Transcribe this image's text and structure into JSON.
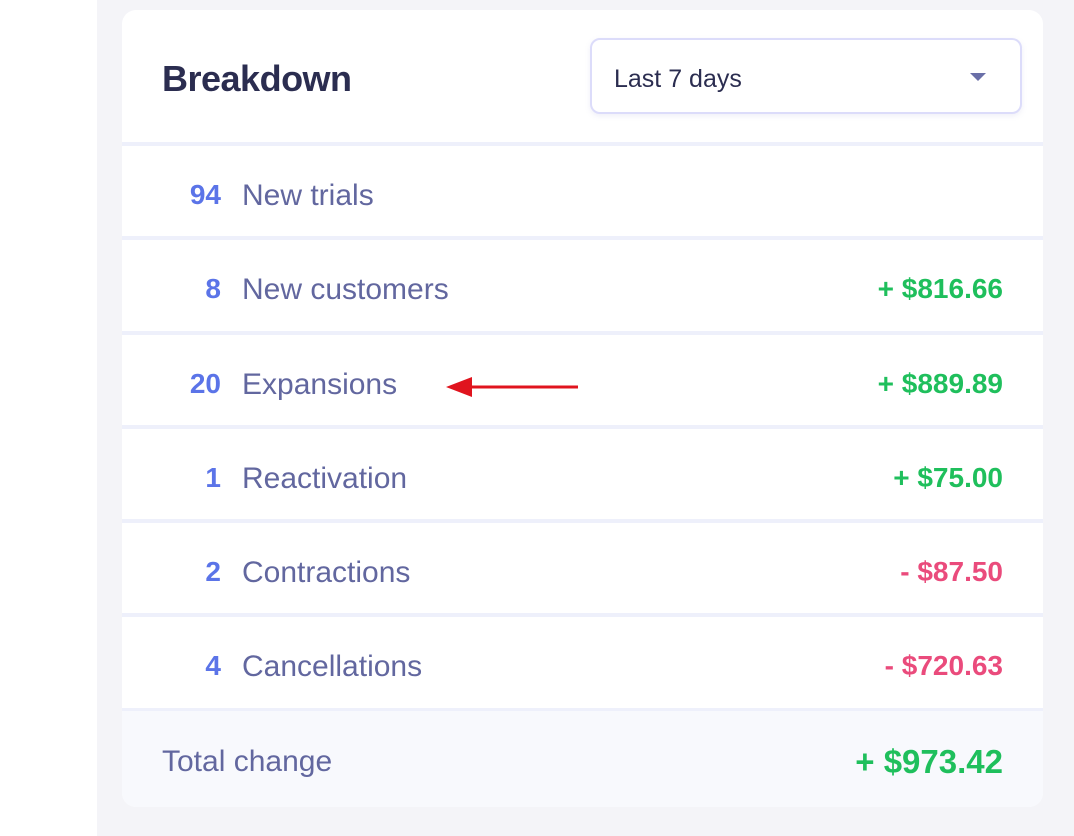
{
  "breakdown": {
    "title": "Breakdown",
    "period_select": {
      "value": "Last 7 days",
      "icon": "caret-down-icon"
    },
    "rows": [
      {
        "count": "94",
        "label": "New trials",
        "amount": ""
      },
      {
        "count": "8",
        "label": "New customers",
        "amount": "+ $816.66"
      },
      {
        "count": "20",
        "label": "Expansions",
        "amount": "+ $889.89"
      },
      {
        "count": "1",
        "label": "Reactivation",
        "amount": "+ $75.00"
      },
      {
        "count": "2",
        "label": "Contractions",
        "amount": "- $87.50"
      },
      {
        "count": "4",
        "label": "Cancellations",
        "amount": "- $720.63"
      }
    ],
    "total": {
      "label": "Total change",
      "amount": "+ $973.42"
    }
  },
  "colors": {
    "positive": "#1fbf5c",
    "negative": "#ea4b7c",
    "count": "#5b74e8",
    "annotation_arrow": "#e0141e"
  }
}
